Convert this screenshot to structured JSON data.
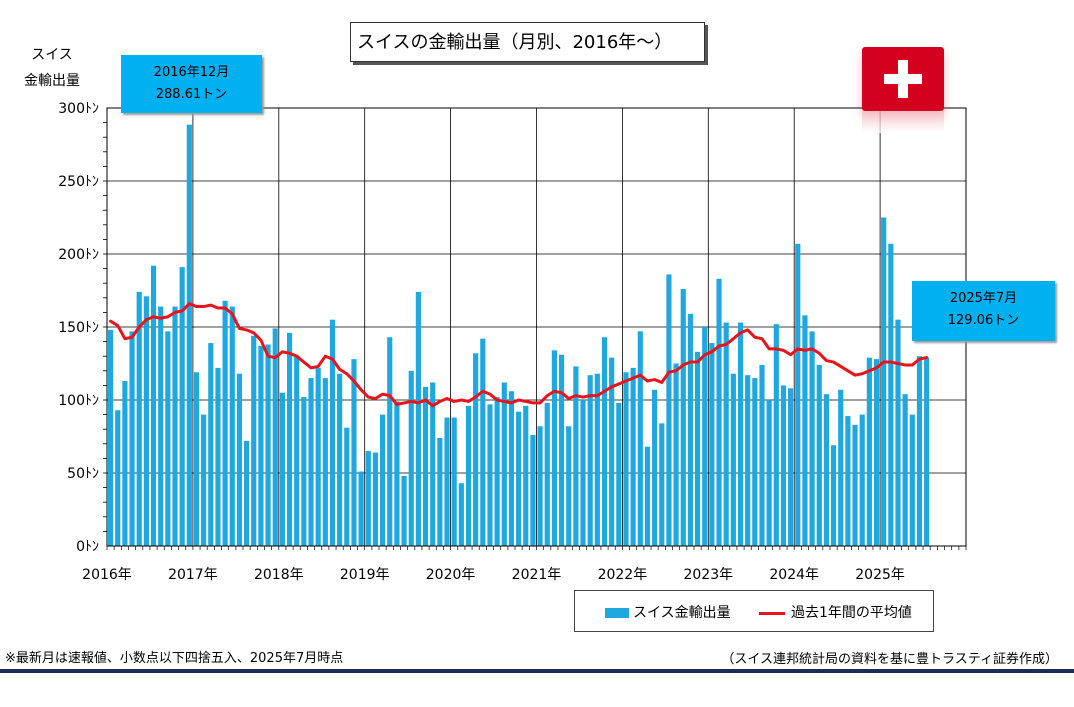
{
  "header": {
    "title": "スイスの金輸出量（月別、2016年～）",
    "y_unit_line1": "スイス",
    "y_unit_line2": "金輸出量"
  },
  "callouts": {
    "peak": {
      "line1": "2016年12月",
      "line2": "288.61トン"
    },
    "latest": {
      "line1": "2025年7月",
      "line2": "129.06トン"
    }
  },
  "legend": {
    "bars": "スイス金輸出量",
    "line": "過去1年間の平均値"
  },
  "footer": {
    "note": "※最新月は速報値、小数点以下四捨五入、2025年7月時点",
    "source": "（スイス連邦統計局の資料を基に豊トラスティ証券作成）"
  },
  "colors": {
    "bar": "#1fa7e0",
    "avg_line": "#e8141b",
    "callout": "#00b0f0",
    "flag": "#d40020"
  },
  "chart_data": {
    "type": "bar",
    "title": "スイスの金輸出量（月別、2016年～）",
    "ylabel": "スイス 金輸出量",
    "y_unit": "トン",
    "ylim": [
      0,
      300
    ],
    "y_ticks": [
      0,
      50,
      100,
      150,
      200,
      250,
      300
    ],
    "y_tick_labels": [
      "0ﾄﾝ",
      "50ﾄﾝ",
      "100ﾄﾝ",
      "150ﾄﾝ",
      "200ﾄﾝ",
      "250ﾄﾝ",
      "300ﾄﾝ"
    ],
    "x_start": "2016-01",
    "x_end": "2025-12",
    "x_tick_labels": [
      "2016年",
      "2017年",
      "2018年",
      "2019年",
      "2020年",
      "2021年",
      "2022年",
      "2023年",
      "2024年",
      "2025年"
    ],
    "grid": true,
    "series": [
      {
        "name": "スイス金輸出量",
        "type": "bar",
        "values": [
          148,
          93,
          113,
          147,
          174,
          171,
          192,
          164,
          147,
          164,
          191,
          288.61,
          119,
          90,
          139,
          122,
          168,
          164,
          118,
          72,
          144,
          137,
          138,
          149,
          105,
          146,
          130,
          102,
          115,
          122,
          115,
          155,
          118,
          81,
          128,
          51,
          65,
          64,
          90,
          143,
          99,
          48,
          120,
          174,
          109,
          112,
          74,
          88,
          88,
          43,
          96,
          132,
          142,
          97,
          102,
          112,
          106,
          92,
          96,
          76,
          82,
          98,
          134,
          131,
          82,
          123,
          100,
          117,
          118,
          143,
          129,
          98,
          119,
          122,
          147,
          68,
          107,
          84,
          186,
          125,
          176,
          159,
          133,
          150,
          139,
          183,
          153,
          118,
          153,
          117,
          115,
          124,
          100,
          152,
          110,
          108,
          207,
          158,
          147,
          124,
          104,
          69,
          107,
          89,
          83,
          90,
          129,
          128,
          225,
          207,
          155,
          104,
          90,
          130,
          129.06
        ]
      },
      {
        "name": "過去1年間の平均値",
        "type": "line",
        "values": [
          154,
          151,
          142,
          143,
          150,
          155,
          157,
          156,
          157,
          160,
          161,
          166,
          164,
          164,
          165,
          163,
          163,
          159,
          149,
          148,
          146,
          141,
          130,
          129,
          133,
          132,
          130,
          126,
          122,
          123,
          130,
          128,
          121,
          118,
          113,
          107,
          102,
          101,
          104,
          103,
          97,
          98,
          99,
          98,
          100,
          96,
          99,
          101,
          99,
          100,
          99,
          102,
          106,
          104,
          100,
          99,
          98,
          100,
          99,
          98,
          98,
          103,
          106,
          105,
          101,
          103,
          102,
          103,
          103,
          106,
          109,
          111,
          113,
          115,
          117,
          113,
          114,
          112,
          119,
          120,
          124,
          126,
          126,
          131,
          133,
          137,
          138,
          142,
          146,
          148,
          143,
          142,
          135,
          135,
          134,
          131,
          135,
          134,
          135,
          132,
          127,
          126,
          123,
          120,
          117,
          118,
          120,
          122,
          126,
          126,
          125,
          124,
          124,
          128,
          129.06
        ]
      }
    ]
  }
}
